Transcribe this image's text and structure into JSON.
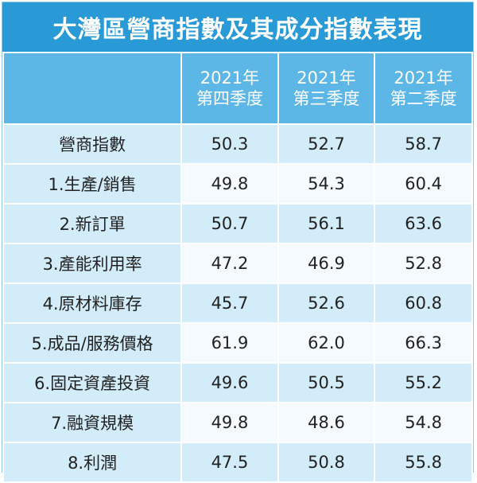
{
  "title": "大灣區營商指數及其成分指數表現",
  "table": {
    "columns": [
      {
        "year": "2021年",
        "quarter": "第四季度"
      },
      {
        "year": "2021年",
        "quarter": "第三季度"
      },
      {
        "year": "2021年",
        "quarter": "第二季度"
      }
    ],
    "rows": [
      [
        "營商指數",
        "50.3",
        "52.7",
        "58.7"
      ],
      [
        "1.生產/銷售",
        "49.8",
        "54.3",
        "60.4"
      ],
      [
        "2.新訂單",
        "50.7",
        "56.1",
        "63.6"
      ],
      [
        "3.產能利用率",
        "47.2",
        "46.9",
        "52.8"
      ],
      [
        "4.原材料庫存",
        "45.7",
        "52.6",
        "60.8"
      ],
      [
        "5.成品/服務價格",
        "61.9",
        "62.0",
        "66.3"
      ],
      [
        "6.固定資產投資",
        "49.6",
        "50.5",
        "55.2"
      ],
      [
        "7.融資規模",
        "49.8",
        "48.6",
        "54.8"
      ],
      [
        "8.利潤",
        "47.5",
        "50.8",
        "55.8"
      ]
    ]
  }
}
